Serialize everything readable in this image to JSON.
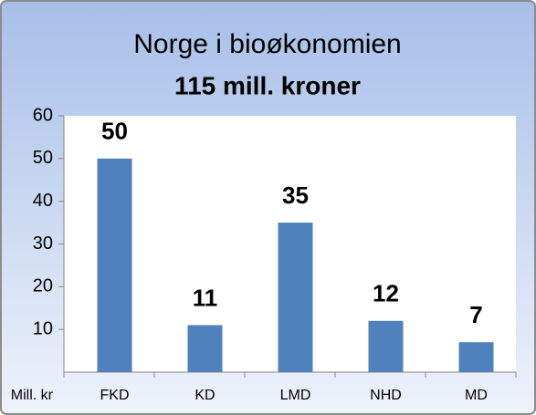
{
  "chart_data": {
    "type": "bar",
    "title": "Norge i bioøkonomien",
    "subtitle": "115 mill. kroner",
    "y_label": "Mill. kr",
    "categories": [
      "FKD",
      "KD",
      "LMD",
      "NHD",
      "MD"
    ],
    "values": [
      50,
      11,
      35,
      12,
      7
    ],
    "color": "#4f81bd",
    "ylim": [
      0,
      60
    ],
    "yticks": [
      10,
      20,
      30,
      40,
      50,
      60
    ],
    "grid": false
  }
}
